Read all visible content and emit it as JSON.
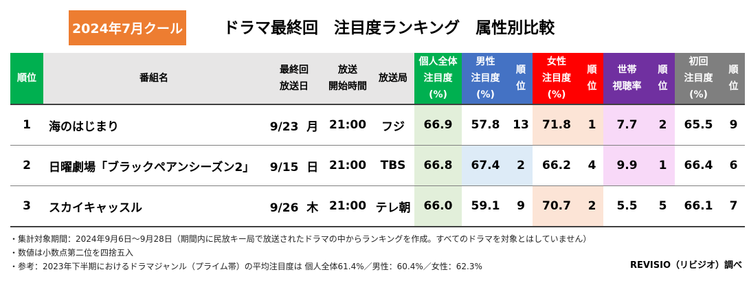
{
  "header": {
    "season_label": "2024年7月クール",
    "title": "ドラマ最終回　注目度ランキング　属性別比較"
  },
  "table": {
    "columns": {
      "rank": "順位",
      "program": "番組名",
      "final_date_l1": "最終回",
      "final_date_l2": "放送日",
      "start_time_l1": "放送",
      "start_time_l2": "開始時間",
      "station": "放送局",
      "all_l1": "個人全体",
      "all_l2": "注目度",
      "all_l3": "(%)",
      "male_l1": "男性",
      "male_l2": "注目度",
      "male_l3": "(%)",
      "male_rank_l1": "順",
      "male_rank_l2": "位",
      "female_l1": "女性",
      "female_l2": "注目度",
      "female_l3": "(%)",
      "female_rank_l1": "順",
      "female_rank_l2": "位",
      "household_l1": "世帯",
      "household_l2": "視聴率",
      "household_rank_l1": "順",
      "household_rank_l2": "位",
      "first_l1": "初回",
      "first_l2": "注目度",
      "first_l3": "(%)",
      "first_rank_l1": "順",
      "first_rank_l2": "位"
    },
    "rows": [
      {
        "rank": "1",
        "program": "海のはじまり",
        "date": "9/23",
        "weekday": "月",
        "start_time": "21:00",
        "station": "フジ",
        "all_attention": "66.9",
        "male_attention": "57.8",
        "male_rank": "13",
        "female_attention": "71.8",
        "female_rank": "1",
        "household_rating": "7.7",
        "household_rank": "2",
        "first_attention": "65.5",
        "first_rank": "9",
        "highlight": "female"
      },
      {
        "rank": "2",
        "program": "日曜劇場「ブラックペアンシーズン2」",
        "date": "9/15",
        "weekday": "日",
        "start_time": "21:00",
        "station": "TBS",
        "all_attention": "66.8",
        "male_attention": "67.4",
        "male_rank": "2",
        "female_attention": "66.2",
        "female_rank": "4",
        "household_rating": "9.9",
        "household_rank": "1",
        "first_attention": "66.4",
        "first_rank": "6",
        "highlight": "male"
      },
      {
        "rank": "3",
        "program": "スカイキャッスル",
        "date": "9/26",
        "weekday": "木",
        "start_time": "21:00",
        "station": "テレ朝",
        "all_attention": "66.0",
        "male_attention": "59.1",
        "male_rank": "9",
        "female_attention": "70.7",
        "female_rank": "2",
        "household_rating": "5.5",
        "household_rank": "5",
        "first_attention": "66.1",
        "first_rank": "7",
        "highlight": "female"
      }
    ]
  },
  "notes": [
    "・集計対象期間：2024年9月6日～9月28日（期間内に民放キー局で放送されたドラマの中からランキングを作成。すべてのドラマを対象とはしていません）",
    "・数値は小数点第二位を四捨五入",
    "・参考：2023年下半期におけるドラマジャンル（プライム帯）の平均注目度は 個人全体61.4%／男性：60.4%／女性：62.3%"
  ],
  "credit": "REVISIO（リビジオ）調べ",
  "colors": {
    "season_badge": "#ed7d31",
    "all_header": "#00b050",
    "male_header": "#4472c4",
    "female_header": "#ff0000",
    "household_header": "#7030a0",
    "first_header": "#7f7f7f",
    "header_gray": "#e7e6e6",
    "all_fill": "#e2efda",
    "male_highlight": "#ddebf7",
    "female_highlight": "#fce4d6",
    "household_fill": "#f8d9f8"
  }
}
